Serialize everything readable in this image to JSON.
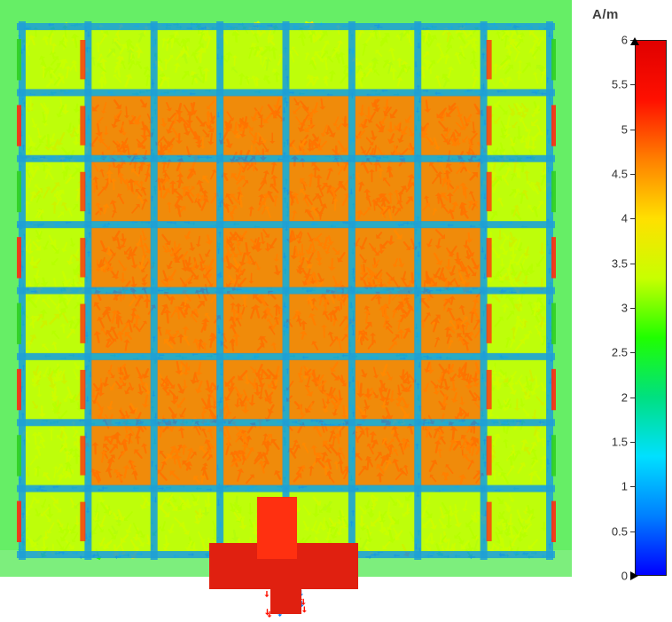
{
  "legend": {
    "unit": "A/m",
    "min": 0,
    "max": 6,
    "ticks": [
      "6",
      "5.5",
      "5",
      "4.5",
      "4",
      "3.5",
      "3",
      "2.5",
      "2",
      "1.5",
      "1",
      "0.5",
      "0"
    ],
    "tick_values": [
      6,
      5.5,
      5,
      4.5,
      4,
      3.5,
      3,
      2.5,
      2,
      1.5,
      1,
      0.5,
      0
    ],
    "colormap": [
      "#0000ff",
      "#0080ff",
      "#00e0ff",
      "#00e080",
      "#20ff00",
      "#c8ff00",
      "#ffe000",
      "#ff8000",
      "#ff1000",
      "#e00000"
    ]
  },
  "field": {
    "type": "surface-current-vector-plot",
    "grid_cells": 8,
    "background_color": "#66ee66"
  }
}
